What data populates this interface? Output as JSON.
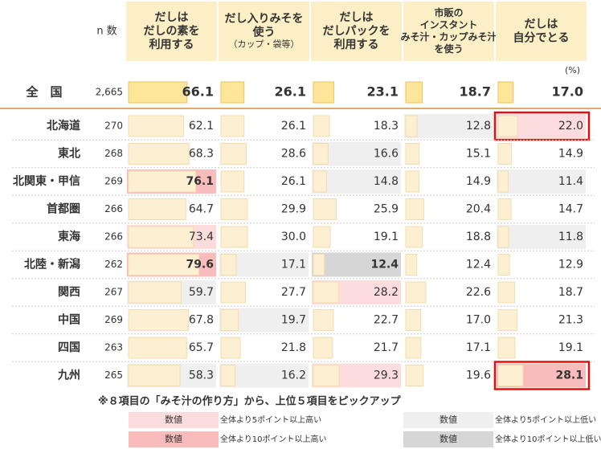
{
  "header": {
    "n_label": "n 数",
    "unit": "(%)",
    "columns": [
      {
        "lines": [
          "だしは",
          "だしの素を",
          "利用する"
        ]
      },
      {
        "lines": [
          "だし入りみそを",
          "使う"
        ],
        "sub": "（カップ・袋等）"
      },
      {
        "lines": [
          "だしは",
          "だしパックを",
          "利用する"
        ]
      },
      {
        "lines": [
          "市販の",
          "インスタント",
          "みそ汁・カップみそ汁",
          "を使う"
        ]
      },
      {
        "lines": [
          "だしは",
          "自分でとる"
        ]
      }
    ]
  },
  "national": {
    "label": "全　国",
    "n": "2,665",
    "cells": [
      {
        "value": 66.1,
        "label": "66.1"
      },
      {
        "value": 26.1,
        "label": "26.1"
      },
      {
        "value": 23.1,
        "label": "23.1"
      },
      {
        "value": 18.7,
        "label": "18.7"
      },
      {
        "value": 17.0,
        "label": "17.0"
      }
    ]
  },
  "rows": [
    {
      "label": "北海道",
      "n": "270",
      "cells": [
        {
          "value": 62.1,
          "label": "62.1"
        },
        {
          "value": 26.1,
          "label": "26.1"
        },
        {
          "value": 18.3,
          "label": "18.3"
        },
        {
          "value": 12.8,
          "label": "12.8",
          "highlight": "down5"
        },
        {
          "value": 22.0,
          "label": "22.0",
          "highlight": "up5",
          "boxed": true
        }
      ]
    },
    {
      "label": "東北",
      "n": "268",
      "cells": [
        {
          "value": 68.3,
          "label": "68.3"
        },
        {
          "value": 28.6,
          "label": "28.6"
        },
        {
          "value": 16.6,
          "label": "16.6",
          "highlight": "down5"
        },
        {
          "value": 15.1,
          "label": "15.1"
        },
        {
          "value": 14.9,
          "label": "14.9"
        }
      ]
    },
    {
      "label": "北関東・甲信",
      "n": "269",
      "cells": [
        {
          "value": 76.1,
          "label": "76.1",
          "highlight": "up10"
        },
        {
          "value": 26.1,
          "label": "26.1"
        },
        {
          "value": 14.8,
          "label": "14.8",
          "highlight": "down5"
        },
        {
          "value": 14.9,
          "label": "14.9"
        },
        {
          "value": 11.4,
          "label": "11.4",
          "highlight": "down5"
        }
      ]
    },
    {
      "label": "首都圏",
      "n": "266",
      "cells": [
        {
          "value": 64.7,
          "label": "64.7"
        },
        {
          "value": 29.9,
          "label": "29.9"
        },
        {
          "value": 25.9,
          "label": "25.9"
        },
        {
          "value": 20.4,
          "label": "20.4"
        },
        {
          "value": 14.7,
          "label": "14.7"
        }
      ]
    },
    {
      "label": "東海",
      "n": "266",
      "cells": [
        {
          "value": 73.4,
          "label": "73.4",
          "highlight": "up5"
        },
        {
          "value": 30.0,
          "label": "30.0"
        },
        {
          "value": 19.1,
          "label": "19.1"
        },
        {
          "value": 18.8,
          "label": "18.8"
        },
        {
          "value": 11.8,
          "label": "11.8",
          "highlight": "down5"
        }
      ]
    },
    {
      "label": "北陸・新潟",
      "n": "262",
      "cells": [
        {
          "value": 79.6,
          "label": "79.6",
          "highlight": "up10"
        },
        {
          "value": 17.1,
          "label": "17.1",
          "highlight": "down5"
        },
        {
          "value": 12.4,
          "label": "12.4",
          "highlight": "down10"
        },
        {
          "value": 12.4,
          "label": "12.4"
        },
        {
          "value": 12.9,
          "label": "12.9"
        }
      ]
    },
    {
      "label": "関西",
      "n": "267",
      "cells": [
        {
          "value": 59.7,
          "label": "59.7",
          "highlight": "down5"
        },
        {
          "value": 27.7,
          "label": "27.7"
        },
        {
          "value": 28.2,
          "label": "28.2",
          "highlight": "up5"
        },
        {
          "value": 22.6,
          "label": "22.6"
        },
        {
          "value": 18.7,
          "label": "18.7"
        }
      ]
    },
    {
      "label": "中国",
      "n": "269",
      "cells": [
        {
          "value": 67.8,
          "label": "67.8"
        },
        {
          "value": 19.7,
          "label": "19.7",
          "highlight": "down5"
        },
        {
          "value": 22.7,
          "label": "22.7"
        },
        {
          "value": 17.0,
          "label": "17.0"
        },
        {
          "value": 21.3,
          "label": "21.3"
        }
      ]
    },
    {
      "label": "四国",
      "n": "263",
      "cells": [
        {
          "value": 65.7,
          "label": "65.7"
        },
        {
          "value": 21.8,
          "label": "21.8"
        },
        {
          "value": 21.7,
          "label": "21.7"
        },
        {
          "value": 17.1,
          "label": "17.1"
        },
        {
          "value": 19.1,
          "label": "19.1"
        }
      ]
    },
    {
      "label": "九州",
      "n": "265",
      "cells": [
        {
          "value": 58.3,
          "label": "58.3",
          "highlight": "down5"
        },
        {
          "value": 16.2,
          "label": "16.2",
          "highlight": "down5"
        },
        {
          "value": 29.3,
          "label": "29.3",
          "highlight": "up5"
        },
        {
          "value": 19.6,
          "label": "19.6"
        },
        {
          "value": 28.1,
          "label": "28.1",
          "highlight": "up10",
          "boxed": true
        }
      ]
    }
  ],
  "note": "※８項目の「みそ汁の作り方」から、上位５項目をピックアップ",
  "legend": [
    {
      "swatch": "数値",
      "text": "全体より5ポイント以上高い",
      "highlight": "up5"
    },
    {
      "swatch": "数値",
      "text": "全体より5ポイント以上低い",
      "highlight": "down5"
    },
    {
      "swatch": "数値",
      "text": "全体より10ポイント以上高い",
      "highlight": "up10"
    },
    {
      "swatch": "数値",
      "text": "全体より10ポイント以上低い",
      "highlight": "down10"
    }
  ]
}
